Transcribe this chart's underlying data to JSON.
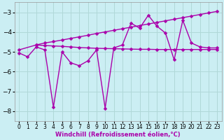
{
  "bg_color": "#cbeef3",
  "grid_color": "#b0d8d8",
  "line_color": "#aa00aa",
  "xlabel": "Windchill (Refroidissement éolien,°C)",
  "xlim": [
    -0.5,
    23.5
  ],
  "ylim": [
    -8.5,
    -2.5
  ],
  "yticks": [
    -8,
    -7,
    -6,
    -5,
    -4,
    -3
  ],
  "xticks": [
    0,
    1,
    2,
    3,
    4,
    5,
    6,
    7,
    8,
    9,
    10,
    11,
    12,
    13,
    14,
    15,
    16,
    17,
    18,
    19,
    20,
    21,
    22,
    23
  ],
  "series1_x": [
    0,
    1,
    2,
    3,
    4,
    5,
    6,
    7,
    8,
    9,
    10,
    11,
    12,
    13,
    14,
    15,
    16,
    17,
    18,
    19,
    20,
    21,
    22,
    23
  ],
  "series1_y": [
    -5.05,
    -5.25,
    -4.75,
    -4.9,
    -7.8,
    -5.0,
    -5.55,
    -5.7,
    -5.45,
    -4.9,
    -7.85,
    -4.8,
    -4.65,
    -3.55,
    -3.8,
    -3.15,
    -3.7,
    -4.05,
    -5.4,
    -3.4,
    -4.55,
    -4.75,
    -4.8,
    -4.8
  ],
  "series2_x": [
    2,
    3,
    4,
    5,
    6,
    7,
    8,
    9,
    10,
    11,
    12,
    13,
    14,
    15,
    16,
    17,
    18,
    19,
    20,
    21,
    22,
    23
  ],
  "series2_y": [
    -4.65,
    -4.68,
    -4.7,
    -4.72,
    -4.75,
    -4.78,
    -4.8,
    -4.82,
    -4.83,
    -4.84,
    -4.85,
    -4.86,
    -4.87,
    -4.87,
    -4.88,
    -4.88,
    -4.88,
    -4.88,
    -4.88,
    -4.88,
    -4.88,
    -4.88
  ],
  "series3_x": [
    0,
    2,
    3,
    4,
    5,
    6,
    7,
    8,
    9,
    10,
    11,
    12,
    13,
    14,
    15,
    16,
    17,
    18,
    19,
    20,
    21,
    22,
    23
  ],
  "series3_y": [
    -4.9,
    -4.65,
    -4.55,
    -4.48,
    -4.4,
    -4.32,
    -4.24,
    -4.16,
    -4.07,
    -3.99,
    -3.91,
    -3.83,
    -3.75,
    -3.67,
    -3.59,
    -3.51,
    -3.43,
    -3.35,
    -3.27,
    -3.19,
    -3.11,
    -3.03,
    -2.95
  ],
  "markersize": 2.5,
  "linewidth": 1.0
}
